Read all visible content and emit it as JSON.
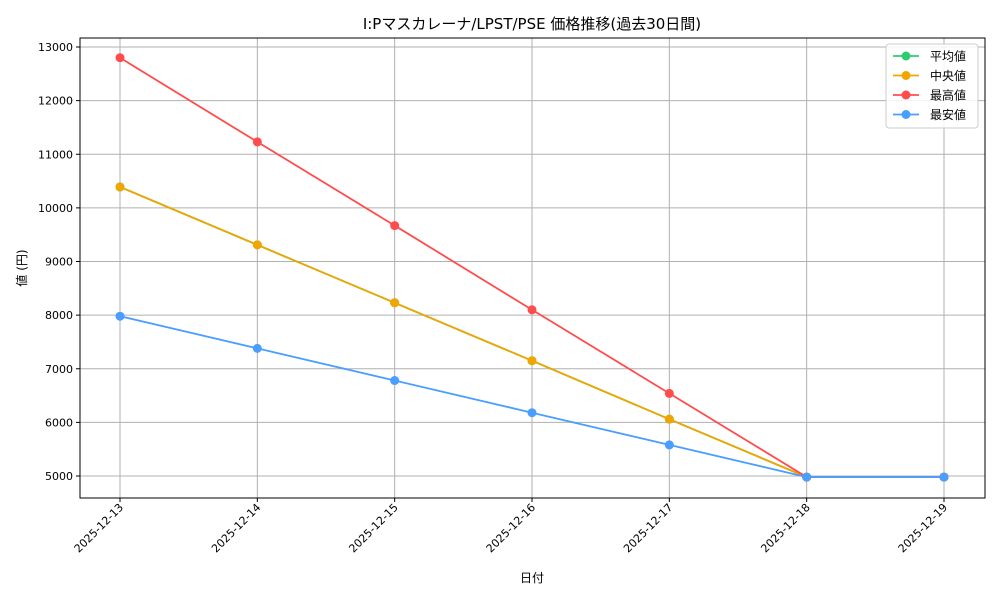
{
  "chart_data": {
    "type": "line",
    "title": "I:Pマスカレーナ/LPST/PSE 価格推移(過去30日間)",
    "xlabel": "日付",
    "ylabel": "値 (円)",
    "categories": [
      "2025-12-13",
      "2025-12-14",
      "2025-12-15",
      "2025-12-16",
      "2025-12-17",
      "2025-12-18",
      "2025-12-19"
    ],
    "yticks": [
      5000,
      6000,
      7000,
      8000,
      9000,
      10000,
      11000,
      12000,
      13000
    ],
    "ylim": [
      4600,
      13200
    ],
    "grid": true,
    "legend_position": "top-right",
    "series": [
      {
        "name": "平均値",
        "color": "#2ecc71",
        "values": [
          10390,
          9310,
          8230,
          7150,
          6060,
          4980,
          4980
        ]
      },
      {
        "name": "中央値",
        "color": "#f0a500",
        "values": [
          10390,
          9310,
          8230,
          7150,
          6060,
          4980,
          4980
        ]
      },
      {
        "name": "最高値",
        "color": "#ff4d4d",
        "values": [
          12800,
          11230,
          9670,
          8100,
          6540,
          4980,
          4980
        ]
      },
      {
        "name": "最安値",
        "color": "#4a9eff",
        "values": [
          7980,
          7380,
          6780,
          6180,
          5580,
          4980,
          4980
        ]
      }
    ]
  }
}
